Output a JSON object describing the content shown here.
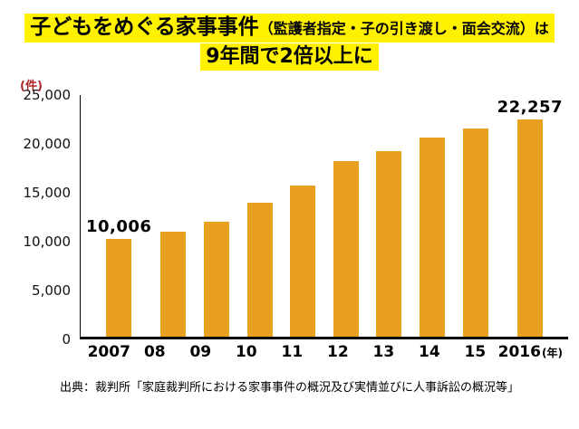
{
  "title": {
    "line1_main": "子どもをめぐる家事事件",
    "line1_sub": "（監護者指定・子の引き渡し・面会交流）は",
    "line2": "9年間で2倍以上に"
  },
  "chart_data": {
    "type": "bar",
    "title": "子どもをめぐる家事事件（監護者指定・子の引き渡し・面会交流）は9年間で2倍以上に",
    "unit_label": "(件)",
    "categories": [
      "2007",
      "08",
      "09",
      "10",
      "11",
      "12",
      "13",
      "14",
      "15",
      "2016"
    ],
    "values": [
      10006,
      10700,
      11800,
      13700,
      15500,
      18000,
      19000,
      20400,
      21300,
      22257
    ],
    "annotations": [
      {
        "index": 0,
        "text": "10,006"
      },
      {
        "index": 9,
        "text": "22,257"
      }
    ],
    "yticks": [
      {
        "value": 0,
        "label": "0"
      },
      {
        "value": 5000,
        "label": "5,000"
      },
      {
        "value": 10000,
        "label": "10,000"
      },
      {
        "value": 15000,
        "label": "15,000"
      },
      {
        "value": 20000,
        "label": "20,000"
      },
      {
        "value": 25000,
        "label": "25,000"
      }
    ],
    "ylim": [
      0,
      25000
    ],
    "xlabel": "",
    "ylabel": "",
    "x_suffix": "(年)",
    "grid": false,
    "legend": "none"
  },
  "colors": {
    "highlight": "#FFF100",
    "bar": "#E8A01E",
    "unit": "#B0252A",
    "axis": "#000000"
  },
  "source": "出典：裁判所「家庭裁判所における家事事件の概況及び実情並びに人事訴訟の概況等」"
}
